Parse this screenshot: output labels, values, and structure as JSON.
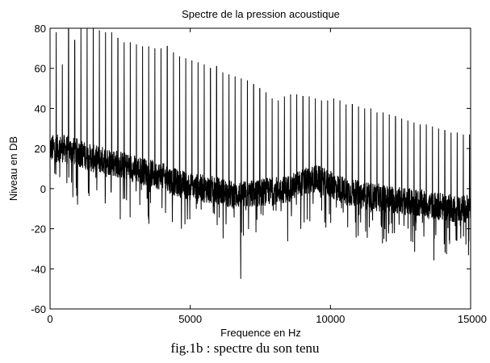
{
  "chart_data": {
    "type": "line",
    "title": "Spectre de la pression acoustique",
    "xlabel": "Frequence en Hz",
    "ylabel": "Niveau en DB",
    "xlim": [
      0,
      15000
    ],
    "ylim": [
      -60,
      80
    ],
    "x_ticks": [
      0,
      5000,
      10000,
      15000
    ],
    "x_tick_labels": [
      "0",
      "5000",
      "10000",
      "15000"
    ],
    "y_ticks": [
      -60,
      -40,
      -20,
      0,
      20,
      40,
      60,
      80
    ],
    "y_tick_labels": [
      "-60",
      "-40",
      "-20",
      "0",
      "20",
      "40",
      "60",
      "80"
    ],
    "grid": false,
    "line_color": "#000000",
    "harmonic_spacing_hz": 220,
    "harmonic_peaks_db": [
      78,
      62,
      84,
      74,
      82,
      80,
      81,
      79,
      78,
      78,
      75,
      73,
      73,
      72,
      71,
      71,
      70,
      70,
      71,
      68,
      66,
      65,
      64,
      63,
      62,
      60,
      61,
      58,
      57,
      56,
      55,
      54,
      52,
      50,
      48,
      45,
      44,
      46,
      47,
      47,
      46,
      46,
      45,
      44,
      44,
      45,
      44,
      42,
      42,
      41,
      40,
      40,
      38,
      38,
      37,
      36,
      35,
      34,
      33,
      32,
      32,
      31,
      30,
      29,
      28,
      28,
      27,
      27
    ],
    "noise_floor_db": [
      {
        "x": 0,
        "y": 20
      },
      {
        "x": 500,
        "y": 20
      },
      {
        "x": 1000,
        "y": 18
      },
      {
        "x": 1500,
        "y": 15
      },
      {
        "x": 2000,
        "y": 14
      },
      {
        "x": 2500,
        "y": 12
      },
      {
        "x": 3000,
        "y": 10
      },
      {
        "x": 3500,
        "y": 8
      },
      {
        "x": 4000,
        "y": 6
      },
      {
        "x": 4500,
        "y": 3
      },
      {
        "x": 5000,
        "y": 1
      },
      {
        "x": 5500,
        "y": 0
      },
      {
        "x": 6000,
        "y": -1
      },
      {
        "x": 6500,
        "y": -3
      },
      {
        "x": 7000,
        "y": -3
      },
      {
        "x": 7500,
        "y": -2
      },
      {
        "x": 8000,
        "y": -1
      },
      {
        "x": 8500,
        "y": 0
      },
      {
        "x": 9000,
        "y": 3
      },
      {
        "x": 9500,
        "y": 5
      },
      {
        "x": 10000,
        "y": 2
      },
      {
        "x": 10500,
        "y": -1
      },
      {
        "x": 11000,
        "y": -3
      },
      {
        "x": 11500,
        "y": -4
      },
      {
        "x": 12000,
        "y": -5
      },
      {
        "x": 12500,
        "y": -6
      },
      {
        "x": 13000,
        "y": -7
      },
      {
        "x": 13500,
        "y": -8
      },
      {
        "x": 14000,
        "y": -9
      },
      {
        "x": 14500,
        "y": -10
      },
      {
        "x": 15000,
        "y": -10
      }
    ],
    "noise_spread_db": 7,
    "min_point": {
      "x": 6800,
      "y": -45
    }
  },
  "caption": "fig.1b : spectre du son tenu"
}
